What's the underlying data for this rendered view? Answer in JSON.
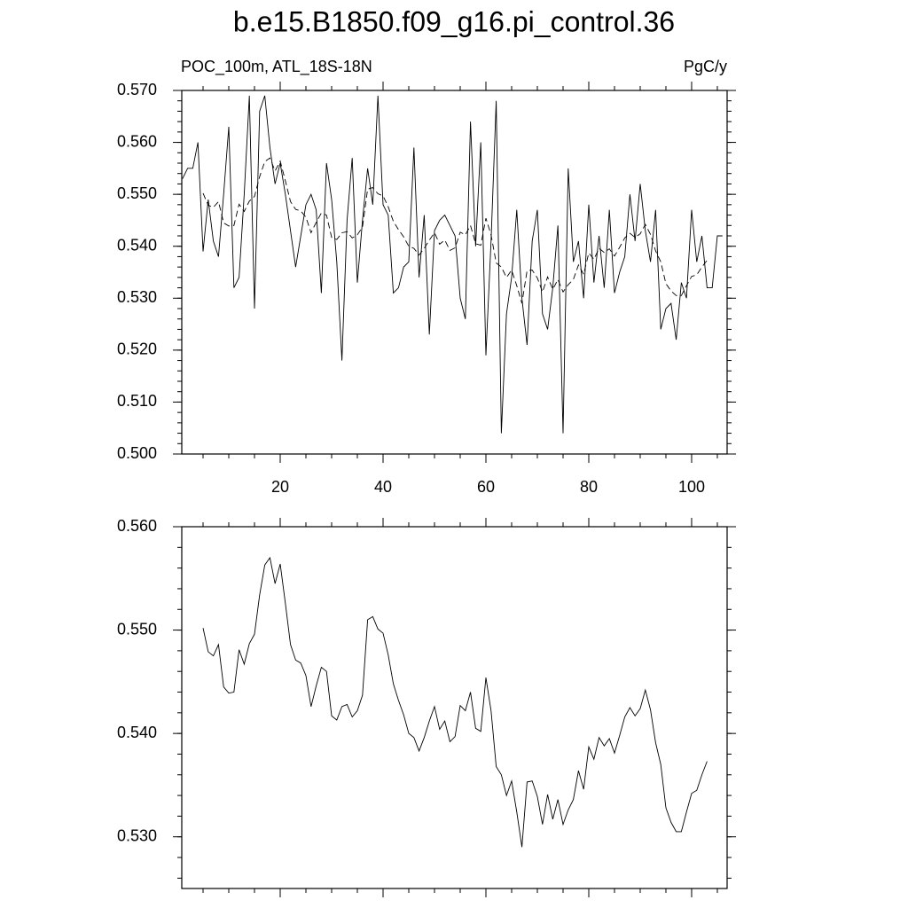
{
  "chart_data": [
    {
      "type": "line",
      "title": "b.e15.B1850.f09_g16.pi_control.36",
      "subtitle": "POC_100m, ATL_18S-18N",
      "y_units": "PgC/y",
      "x": [
        1,
        2,
        3,
        4,
        5,
        6,
        7,
        8,
        9,
        10,
        11,
        12,
        13,
        14,
        15,
        16,
        17,
        18,
        19,
        20,
        21,
        22,
        23,
        24,
        25,
        26,
        27,
        28,
        29,
        30,
        31,
        32,
        33,
        34,
        35,
        36,
        37,
        38,
        39,
        40,
        41,
        42,
        43,
        44,
        45,
        46,
        47,
        48,
        49,
        50,
        51,
        52,
        53,
        54,
        55,
        56,
        57,
        58,
        59,
        60,
        61,
        62,
        63,
        64,
        65,
        66,
        67,
        68,
        69,
        70,
        71,
        72,
        73,
        74,
        75,
        76,
        77,
        78,
        79,
        80,
        81,
        82,
        83,
        84,
        85,
        86,
        87,
        88,
        89,
        90,
        91,
        92,
        93,
        94,
        95,
        96,
        97,
        98,
        99,
        100,
        101,
        102,
        103,
        104,
        105,
        106
      ],
      "series": [
        {
          "color": "#000000",
          "style": "solid",
          "values": [
            0.553,
            0.555,
            0.555,
            0.56,
            0.539,
            0.549,
            0.541,
            0.538,
            0.55,
            0.563,
            0.532,
            0.534,
            0.55,
            0.569,
            0.528,
            0.566,
            0.569,
            0.559,
            0.552,
            0.556,
            0.55,
            0.543,
            0.536,
            0.542,
            0.548,
            0.55,
            0.547,
            0.531,
            0.556,
            0.549,
            0.537,
            0.518,
            0.545,
            0.557,
            0.533,
            0.545,
            0.555,
            0.548,
            0.569,
            0.548,
            0.546,
            0.531,
            0.532,
            0.536,
            0.537,
            0.559,
            0.534,
            0.546,
            0.523,
            0.543,
            0.545,
            0.546,
            0.544,
            0.542,
            0.53,
            0.526,
            0.564,
            0.54,
            0.56,
            0.519,
            0.541,
            0.568,
            0.504,
            0.527,
            0.534,
            0.547,
            0.53,
            0.521,
            0.541,
            0.547,
            0.527,
            0.524,
            0.532,
            0.544,
            0.504,
            0.555,
            0.537,
            0.541,
            0.53,
            0.548,
            0.533,
            0.542,
            0.532,
            0.547,
            0.531,
            0.535,
            0.538,
            0.55,
            0.541,
            0.552,
            0.543,
            0.537,
            0.547,
            0.524,
            0.528,
            0.529,
            0.522,
            0.533,
            0.53,
            0.547,
            0.537,
            0.542,
            0.532,
            0.532,
            0.542,
            0.542
          ]
        },
        {
          "color": "#000000",
          "style": "dashed",
          "values": [
            null,
            null,
            null,
            null,
            0.5502,
            0.5479,
            0.5475,
            0.5486,
            0.5445,
            0.5439,
            0.544,
            0.5481,
            0.5467,
            0.5487,
            0.5496,
            0.5534,
            0.5563,
            0.557,
            0.5545,
            0.5564,
            0.5526,
            0.5486,
            0.5471,
            0.5468,
            0.5456,
            0.5426,
            0.5446,
            0.5464,
            0.546,
            0.5417,
            0.5413,
            0.5426,
            0.5428,
            0.5416,
            0.5422,
            0.5437,
            0.551,
            0.5513,
            0.5501,
            0.5497,
            0.5476,
            0.5448,
            0.5432,
            0.5418,
            0.54,
            0.5396,
            0.5383,
            0.5396,
            0.5412,
            0.5426,
            0.5404,
            0.5412,
            0.5392,
            0.5397,
            0.5427,
            0.5422,
            0.544,
            0.5405,
            0.5402,
            0.5454,
            0.5422,
            0.5368,
            0.536,
            0.534,
            0.5354,
            0.5324,
            0.529,
            0.5353,
            0.5354,
            0.5339,
            0.5312,
            0.5341,
            0.5317,
            0.5336,
            0.5312,
            0.5326,
            0.5336,
            0.5364,
            0.5346,
            0.5387,
            0.5375,
            0.5396,
            0.5388,
            0.5395,
            0.5381,
            0.5398,
            0.5416,
            0.5425,
            0.5417,
            0.5424,
            0.5442,
            0.5423,
            0.5391,
            0.537,
            0.5328,
            0.5314,
            0.5305,
            0.5305,
            0.5324,
            0.5342,
            0.5345,
            0.536,
            0.5373,
            null,
            null,
            null
          ]
        }
      ],
      "xlim": [
        0.86,
        106.9
      ],
      "xticks": [
        20,
        40,
        60,
        80,
        100
      ],
      "xtick_labels": true,
      "ylim": [
        0.5,
        0.57
      ],
      "yticks": [
        {
          "value": 0.5,
          "label": "0.500"
        },
        {
          "value": 0.51,
          "label": "0.510"
        },
        {
          "value": 0.52,
          "label": "0.520"
        },
        {
          "value": 0.53,
          "label": "0.530"
        },
        {
          "value": 0.54,
          "label": "0.540"
        },
        {
          "value": 0.55,
          "label": "0.550"
        },
        {
          "value": 0.56,
          "label": "0.560"
        },
        {
          "value": 0.57,
          "label": "0.570"
        }
      ]
    },
    {
      "type": "line",
      "x": [
        1,
        2,
        3,
        4,
        5,
        6,
        7,
        8,
        9,
        10,
        11,
        12,
        13,
        14,
        15,
        16,
        17,
        18,
        19,
        20,
        21,
        22,
        23,
        24,
        25,
        26,
        27,
        28,
        29,
        30,
        31,
        32,
        33,
        34,
        35,
        36,
        37,
        38,
        39,
        40,
        41,
        42,
        43,
        44,
        45,
        46,
        47,
        48,
        49,
        50,
        51,
        52,
        53,
        54,
        55,
        56,
        57,
        58,
        59,
        60,
        61,
        62,
        63,
        64,
        65,
        66,
        67,
        68,
        69,
        70,
        71,
        72,
        73,
        74,
        75,
        76,
        77,
        78,
        79,
        80,
        81,
        82,
        83,
        84,
        85,
        86,
        87,
        88,
        89,
        90,
        91,
        92,
        93,
        94,
        95,
        96,
        97,
        98,
        99,
        100,
        101,
        102,
        103,
        104,
        105,
        106
      ],
      "series": [
        {
          "color": "#000000",
          "style": "solid",
          "values": [
            null,
            null,
            null,
            null,
            0.5502,
            0.5479,
            0.5475,
            0.5486,
            0.5445,
            0.5439,
            0.544,
            0.5481,
            0.5467,
            0.5487,
            0.5496,
            0.5534,
            0.5563,
            0.557,
            0.5545,
            0.5564,
            0.5526,
            0.5486,
            0.5471,
            0.5468,
            0.5456,
            0.5426,
            0.5446,
            0.5464,
            0.546,
            0.5417,
            0.5413,
            0.5426,
            0.5428,
            0.5416,
            0.5422,
            0.5437,
            0.551,
            0.5513,
            0.5501,
            0.5497,
            0.5476,
            0.5448,
            0.5432,
            0.5418,
            0.54,
            0.5396,
            0.5383,
            0.5396,
            0.5412,
            0.5426,
            0.5404,
            0.5412,
            0.5392,
            0.5397,
            0.5427,
            0.5422,
            0.544,
            0.5405,
            0.5402,
            0.5454,
            0.5422,
            0.5368,
            0.536,
            0.534,
            0.5354,
            0.5324,
            0.529,
            0.5353,
            0.5354,
            0.5339,
            0.5312,
            0.5341,
            0.5317,
            0.5336,
            0.5312,
            0.5326,
            0.5336,
            0.5364,
            0.5346,
            0.5387,
            0.5375,
            0.5396,
            0.5388,
            0.5395,
            0.5381,
            0.5398,
            0.5416,
            0.5425,
            0.5417,
            0.5424,
            0.5442,
            0.5423,
            0.5391,
            0.537,
            0.5328,
            0.5314,
            0.5305,
            0.5305,
            0.5324,
            0.5342,
            0.5345,
            0.536,
            0.5373,
            null,
            null,
            null
          ]
        }
      ],
      "xlim": [
        0.86,
        106.9
      ],
      "xticks": [
        20,
        40,
        60,
        80,
        100
      ],
      "xtick_labels": false,
      "ylim": [
        0.525,
        0.56
      ],
      "yticks": [
        {
          "value": 0.53,
          "label": "0.530"
        },
        {
          "value": 0.54,
          "label": "0.540"
        },
        {
          "value": 0.55,
          "label": "0.550"
        },
        {
          "value": 0.56,
          "label": "0.560"
        }
      ]
    }
  ]
}
